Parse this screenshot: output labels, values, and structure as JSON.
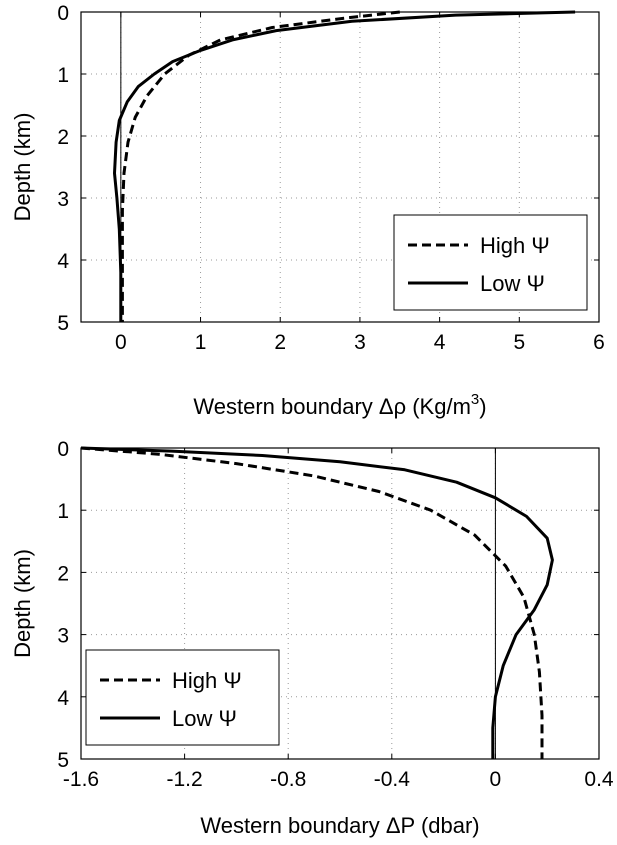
{
  "chart_data": [
    {
      "type": "line",
      "xlabel": "Western boundary Δρ  (Kg/m³)",
      "xlabel_parts": {
        "main": "Western boundary ",
        "delta": "Δρ",
        "unit": "  (Kg/m",
        "sup": "3",
        "close": ")"
      },
      "ylabel": "Depth (km)",
      "xlim": [
        -0.5,
        6
      ],
      "ylim": [
        0,
        5
      ],
      "y_reversed": true,
      "xticks": [
        0,
        1,
        2,
        3,
        4,
        5,
        6
      ],
      "xtick_labels": [
        "0",
        "1",
        "2",
        "3",
        "4",
        "5",
        "6"
      ],
      "yticks": [
        0,
        1,
        2,
        3,
        4,
        5
      ],
      "ytick_labels": [
        "0",
        "1",
        "2",
        "3",
        "4",
        "5"
      ],
      "grid": true,
      "zero_line": true,
      "legend_position": "bottom-right",
      "series": [
        {
          "name": "High Ψ",
          "style": "dashed",
          "x": [
            3.5,
            2.8,
            1.9,
            1.25,
            0.85,
            0.55,
            0.33,
            0.18,
            0.09,
            0.04,
            0.02,
            0.02,
            0.02
          ],
          "y": [
            0,
            0.1,
            0.25,
            0.45,
            0.7,
            1.0,
            1.35,
            1.7,
            2.1,
            2.6,
            3.2,
            4.0,
            5.0
          ]
        },
        {
          "name": "Low Ψ",
          "style": "solid",
          "x": [
            5.7,
            4.2,
            2.9,
            1.95,
            1.4,
            1.0,
            0.65,
            0.42,
            0.22,
            0.08,
            -0.02,
            -0.06,
            -0.08,
            -0.05,
            -0.02,
            0.0,
            0.0
          ],
          "y": [
            0,
            0.05,
            0.15,
            0.3,
            0.45,
            0.62,
            0.8,
            1.0,
            1.2,
            1.45,
            1.75,
            2.1,
            2.6,
            3.0,
            3.5,
            4.2,
            5.0
          ]
        }
      ]
    },
    {
      "type": "line",
      "xlabel": "Western boundary ΔP  (dbar)",
      "xlabel_parts": {
        "main": "Western boundary ",
        "delta": "ΔP",
        "unit": "  (dbar)"
      },
      "ylabel": "Depth (km)",
      "xlim": [
        -1.6,
        0.4
      ],
      "ylim": [
        0,
        5
      ],
      "y_reversed": true,
      "xticks": [
        -1.6,
        -1.2,
        -0.8,
        -0.4,
        0,
        0.4
      ],
      "xtick_labels": [
        "-1.6",
        "-1.2",
        "-0.8",
        "-0.4",
        "0",
        "0.4"
      ],
      "yticks": [
        0,
        1,
        2,
        3,
        4,
        5
      ],
      "ytick_labels": [
        "0",
        "1",
        "2",
        "3",
        "4",
        "5"
      ],
      "grid": true,
      "zero_line": true,
      "legend_position": "bottom-left",
      "series": [
        {
          "name": "High Ψ",
          "style": "dashed",
          "x": [
            -1.6,
            -1.3,
            -1.0,
            -0.7,
            -0.45,
            -0.25,
            -0.08,
            0.04,
            0.11,
            0.15,
            0.17,
            0.18,
            0.18
          ],
          "y": [
            0,
            0.1,
            0.25,
            0.45,
            0.7,
            1.0,
            1.4,
            1.9,
            2.4,
            3.0,
            3.6,
            4.3,
            5.0
          ]
        },
        {
          "name": "Low Ψ",
          "style": "solid",
          "x": [
            -1.6,
            -1.25,
            -0.9,
            -0.6,
            -0.35,
            -0.15,
            0.0,
            0.12,
            0.2,
            0.22,
            0.2,
            0.15,
            0.08,
            0.03,
            0.0,
            -0.01,
            -0.01
          ],
          "y": [
            0,
            0.05,
            0.12,
            0.22,
            0.35,
            0.55,
            0.8,
            1.1,
            1.45,
            1.8,
            2.2,
            2.6,
            3.0,
            3.5,
            4.0,
            4.5,
            5.0
          ]
        }
      ]
    }
  ]
}
